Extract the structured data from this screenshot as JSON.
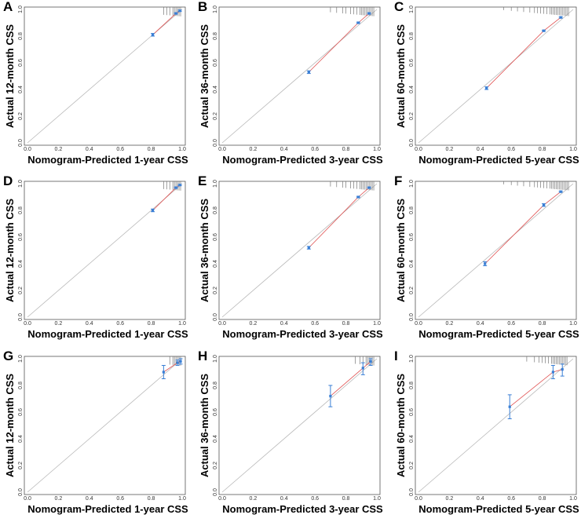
{
  "colors": {
    "points": "#3a7fd5",
    "fit_line": "#e05050",
    "ideal_line": "#b8b8b8",
    "axes": "#555555",
    "rug": "#777777"
  },
  "chart_data": [
    {
      "type": "scatter",
      "letter": "A",
      "xlabel": "Nomogram-Predicted 1-year CSS",
      "ylabel": "Actual 12-month CSS",
      "xlim": [
        0,
        1
      ],
      "ylim": [
        0,
        1
      ],
      "ticks": [
        "0.0",
        "0.2",
        "0.4",
        "0.6",
        "0.8",
        "1.0"
      ],
      "points": [
        {
          "x": 0.81,
          "y": 0.81,
          "lo": 0.8,
          "hi": 0.82
        },
        {
          "x": 0.96,
          "y": 0.97,
          "lo": 0.965,
          "hi": 0.975
        },
        {
          "x": 0.985,
          "y": 0.99,
          "lo": 0.985,
          "hi": 0.995
        }
      ],
      "rug": [
        0.88,
        0.9,
        0.92,
        0.94,
        0.95,
        0.96,
        0.97,
        0.98,
        0.99
      ]
    },
    {
      "type": "scatter",
      "letter": "B",
      "xlabel": "Nomogram-Predicted 3-year CSS",
      "ylabel": "Actual 36-month CSS",
      "xlim": [
        0,
        1
      ],
      "ylim": [
        0,
        1
      ],
      "ticks": [
        "0.0",
        "0.2",
        "0.4",
        "0.6",
        "0.8",
        "1.0"
      ],
      "points": [
        {
          "x": 0.56,
          "y": 0.53,
          "lo": 0.52,
          "hi": 0.54
        },
        {
          "x": 0.88,
          "y": 0.9,
          "lo": 0.895,
          "hi": 0.905
        },
        {
          "x": 0.95,
          "y": 0.97,
          "lo": 0.965,
          "hi": 0.975
        }
      ],
      "rug": [
        0.7,
        0.74,
        0.78,
        0.8,
        0.83,
        0.85,
        0.87,
        0.89,
        0.9,
        0.91,
        0.92,
        0.93,
        0.94,
        0.95,
        0.96,
        0.97,
        0.98
      ]
    },
    {
      "type": "scatter",
      "letter": "C",
      "xlabel": "Nomogram-Predicted 5-year CSS",
      "ylabel": "Actual 60-month CSS",
      "xlim": [
        0,
        1
      ],
      "ylim": [
        0,
        1
      ],
      "ticks": [
        "0.0",
        "0.2",
        "0.4",
        "0.6",
        "0.8",
        "1.0"
      ],
      "points": [
        {
          "x": 0.44,
          "y": 0.41,
          "lo": 0.4,
          "hi": 0.42
        },
        {
          "x": 0.81,
          "y": 0.84,
          "lo": 0.835,
          "hi": 0.845
        },
        {
          "x": 0.92,
          "y": 0.94,
          "lo": 0.935,
          "hi": 0.945
        }
      ],
      "rug": [
        0.55,
        0.6,
        0.64,
        0.68,
        0.72,
        0.75,
        0.77,
        0.79,
        0.81,
        0.83,
        0.85,
        0.86,
        0.87,
        0.88,
        0.89,
        0.9,
        0.91,
        0.92,
        0.93,
        0.94,
        0.95,
        0.96,
        0.97
      ]
    },
    {
      "type": "scatter",
      "letter": "D",
      "xlabel": "Nomogram-Predicted 1-year CSS",
      "ylabel": "Actual 12-month CSS",
      "xlim": [
        0,
        1
      ],
      "ylim": [
        0,
        1
      ],
      "ticks": [
        "0.0",
        "0.2",
        "0.4",
        "0.6",
        "0.8",
        "1.0"
      ],
      "points": [
        {
          "x": 0.81,
          "y": 0.8,
          "lo": 0.79,
          "hi": 0.81
        },
        {
          "x": 0.96,
          "y": 0.97,
          "lo": 0.965,
          "hi": 0.975
        },
        {
          "x": 0.985,
          "y": 0.99,
          "lo": 0.985,
          "hi": 0.995
        }
      ],
      "rug": [
        0.88,
        0.9,
        0.92,
        0.94,
        0.95,
        0.96,
        0.97,
        0.98,
        0.99
      ]
    },
    {
      "type": "scatter",
      "letter": "E",
      "xlabel": "Nomogram-Predicted 3-year CSS",
      "ylabel": "Actual 36-month CSS",
      "xlim": [
        0,
        1
      ],
      "ylim": [
        0,
        1
      ],
      "ticks": [
        "0.0",
        "0.2",
        "0.4",
        "0.6",
        "0.8",
        "1.0"
      ],
      "points": [
        {
          "x": 0.56,
          "y": 0.52,
          "lo": 0.51,
          "hi": 0.53
        },
        {
          "x": 0.88,
          "y": 0.9,
          "lo": 0.895,
          "hi": 0.905
        },
        {
          "x": 0.95,
          "y": 0.97,
          "lo": 0.965,
          "hi": 0.975
        }
      ],
      "rug": [
        0.7,
        0.74,
        0.78,
        0.8,
        0.83,
        0.85,
        0.87,
        0.89,
        0.9,
        0.91,
        0.92,
        0.93,
        0.94,
        0.95,
        0.96,
        0.97,
        0.98
      ]
    },
    {
      "type": "scatter",
      "letter": "F",
      "xlabel": "Nomogram-Predicted 5-year CSS",
      "ylabel": "Actual 60-month CSS",
      "xlim": [
        0,
        1
      ],
      "ylim": [
        0,
        1
      ],
      "ticks": [
        "0.0",
        "0.2",
        "0.4",
        "0.6",
        "0.8",
        "1.0"
      ],
      "points": [
        {
          "x": 0.43,
          "y": 0.4,
          "lo": 0.385,
          "hi": 0.415
        },
        {
          "x": 0.81,
          "y": 0.84,
          "lo": 0.83,
          "hi": 0.85
        },
        {
          "x": 0.92,
          "y": 0.94,
          "lo": 0.935,
          "hi": 0.945
        }
      ],
      "rug": [
        0.55,
        0.6,
        0.64,
        0.68,
        0.72,
        0.75,
        0.77,
        0.79,
        0.81,
        0.83,
        0.85,
        0.86,
        0.87,
        0.88,
        0.89,
        0.9,
        0.91,
        0.92,
        0.93,
        0.94,
        0.95,
        0.96,
        0.97
      ]
    },
    {
      "type": "scatter",
      "letter": "G",
      "xlabel": "Nomogram-Predicted 1-year CSS",
      "ylabel": "Actual 12-month CSS",
      "xlim": [
        0,
        1
      ],
      "ylim": [
        0,
        1
      ],
      "ticks": [
        "0.0",
        "0.2",
        "0.4",
        "0.6",
        "0.8",
        "1.0"
      ],
      "points": [
        {
          "x": 0.88,
          "y": 0.9,
          "lo": 0.85,
          "hi": 0.95
        },
        {
          "x": 0.97,
          "y": 0.97,
          "lo": 0.95,
          "hi": 0.99
        },
        {
          "x": 0.99,
          "y": 0.98,
          "lo": 0.96,
          "hi": 1.0
        }
      ],
      "rug": [
        0.92,
        0.94,
        0.95,
        0.96,
        0.97,
        0.98,
        0.99
      ]
    },
    {
      "type": "scatter",
      "letter": "H",
      "xlabel": "Nomogram-Predicted 3-year CSS",
      "ylabel": "Actual 36-month CSS",
      "xlim": [
        0,
        1
      ],
      "ylim": [
        0,
        1
      ],
      "ticks": [
        "0.0",
        "0.2",
        "0.4",
        "0.6",
        "0.8",
        "1.0"
      ],
      "points": [
        {
          "x": 0.7,
          "y": 0.72,
          "lo": 0.64,
          "hi": 0.8
        },
        {
          "x": 0.91,
          "y": 0.93,
          "lo": 0.88,
          "hi": 0.97
        },
        {
          "x": 0.96,
          "y": 0.98,
          "lo": 0.95,
          "hi": 1.0
        }
      ],
      "rug": [
        0.86,
        0.89,
        0.91,
        0.93,
        0.94,
        0.95,
        0.96,
        0.97,
        0.98
      ]
    },
    {
      "type": "scatter",
      "letter": "I",
      "xlabel": "Nomogram-Predicted 5-year CSS",
      "ylabel": "Actual 60-month CSS",
      "xlim": [
        0,
        1
      ],
      "ylim": [
        0,
        1
      ],
      "ticks": [
        "0.0",
        "0.2",
        "0.4",
        "0.6",
        "0.8",
        "1.0"
      ],
      "points": [
        {
          "x": 0.59,
          "y": 0.64,
          "lo": 0.55,
          "hi": 0.73
        },
        {
          "x": 0.87,
          "y": 0.9,
          "lo": 0.85,
          "hi": 0.95
        },
        {
          "x": 0.93,
          "y": 0.92,
          "lo": 0.87,
          "hi": 0.96
        }
      ],
      "rug": [
        0.7,
        0.75,
        0.78,
        0.8,
        0.82,
        0.84,
        0.86,
        0.87,
        0.88,
        0.89,
        0.9,
        0.91,
        0.92,
        0.93,
        0.94,
        0.95,
        0.96
      ]
    }
  ]
}
